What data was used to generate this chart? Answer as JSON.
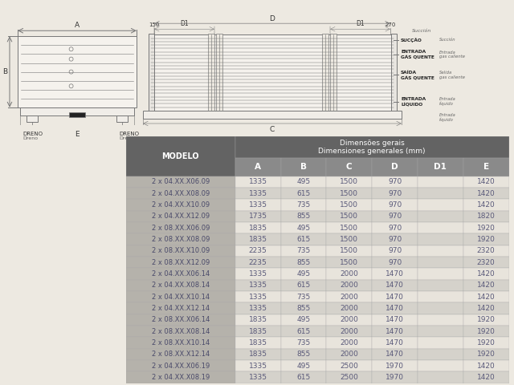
{
  "bg_color": "#ede9e1",
  "table_header_bg": "#636363",
  "table_col_header_bg": "#8a8a8a",
  "table_model_bg": "#b5b2ab",
  "table_data_bg_light": "#e8e4dc",
  "table_data_bg_dark": "#d5d2cb",
  "table_header_text": "#ffffff",
  "table_data_text": "#5a5a7a",
  "table_model_text": "#4a4a6a",
  "header_title": "Dimensões gerais",
  "header_subtitle": "Dimensiones generales (mm)",
  "col_headers": [
    "A",
    "B",
    "C",
    "D",
    "D1",
    "E"
  ],
  "model_col": "MODELO",
  "rows": [
    [
      "2 x 04.XX.X06.09",
      1335,
      495,
      1500,
      970,
      "",
      1420
    ],
    [
      "2 x 04.XX.X08.09",
      1335,
      615,
      1500,
      970,
      "",
      1420
    ],
    [
      "2 x 04.XX.X10.09",
      1335,
      735,
      1500,
      970,
      "",
      1420
    ],
    [
      "2 x 04.XX.X12.09",
      1735,
      855,
      1500,
      970,
      "",
      1820
    ],
    [
      "2 x 08.XX.X06.09",
      1835,
      495,
      1500,
      970,
      "",
      1920
    ],
    [
      "2 x 08.XX.X08.09",
      1835,
      615,
      1500,
      970,
      "",
      1920
    ],
    [
      "2 x 08.XX.X10.09",
      2235,
      735,
      1500,
      970,
      "",
      2320
    ],
    [
      "2 x 08.XX.X12.09",
      2235,
      855,
      1500,
      970,
      "",
      2320
    ],
    [
      "2 x 04.XX.X06.14",
      1335,
      495,
      2000,
      1470,
      "",
      1420
    ],
    [
      "2 x 04.XX.X08.14",
      1335,
      615,
      2000,
      1470,
      "",
      1420
    ],
    [
      "2 x 04.XX.X10.14",
      1335,
      735,
      2000,
      1470,
      "",
      1420
    ],
    [
      "2 x 04.XX.X12.14",
      1335,
      855,
      2000,
      1470,
      "",
      1420
    ],
    [
      "2 x 08.XX.X06.14",
      1835,
      495,
      2000,
      1470,
      "",
      1920
    ],
    [
      "2 x 08.XX.X08.14",
      1835,
      615,
      2000,
      1470,
      "",
      1920
    ],
    [
      "2 x 08.XX.X10.14",
      1835,
      735,
      2000,
      1470,
      "",
      1920
    ],
    [
      "2 x 08.XX.X12.14",
      1835,
      855,
      2000,
      1470,
      "",
      1920
    ],
    [
      "2 x 04.XX.X06.19",
      1335,
      495,
      2500,
      1970,
      "",
      1420
    ],
    [
      "2 x 04.XX.X08.19",
      1335,
      615,
      2500,
      1970,
      "",
      1420
    ]
  ],
  "line_color": "#777777",
  "label_color": "#333333",
  "annotation_color": "#666666",
  "bold_label_color": "#222222",
  "dreno_label": "DRENO",
  "dreno_es_label": "Dreno",
  "succion_es": "Succión",
  "sucao_pt": "SUCÇÃO",
  "entrada_gas_quente_pt": "ENTRADA\nGÁS QUENTE",
  "entrada_gas_caliente_es": "Entrada\ngas caliente",
  "saida_gas_quente_pt": "SAÍDA\nGÁS QUENTE",
  "salida_gas_caliente_es": "Salida\ngas caliente",
  "entrada_liquido_pt": "ENTRADA\nLÍQUIDO",
  "entrada_liquido_es": "Entrada\nlíquido"
}
